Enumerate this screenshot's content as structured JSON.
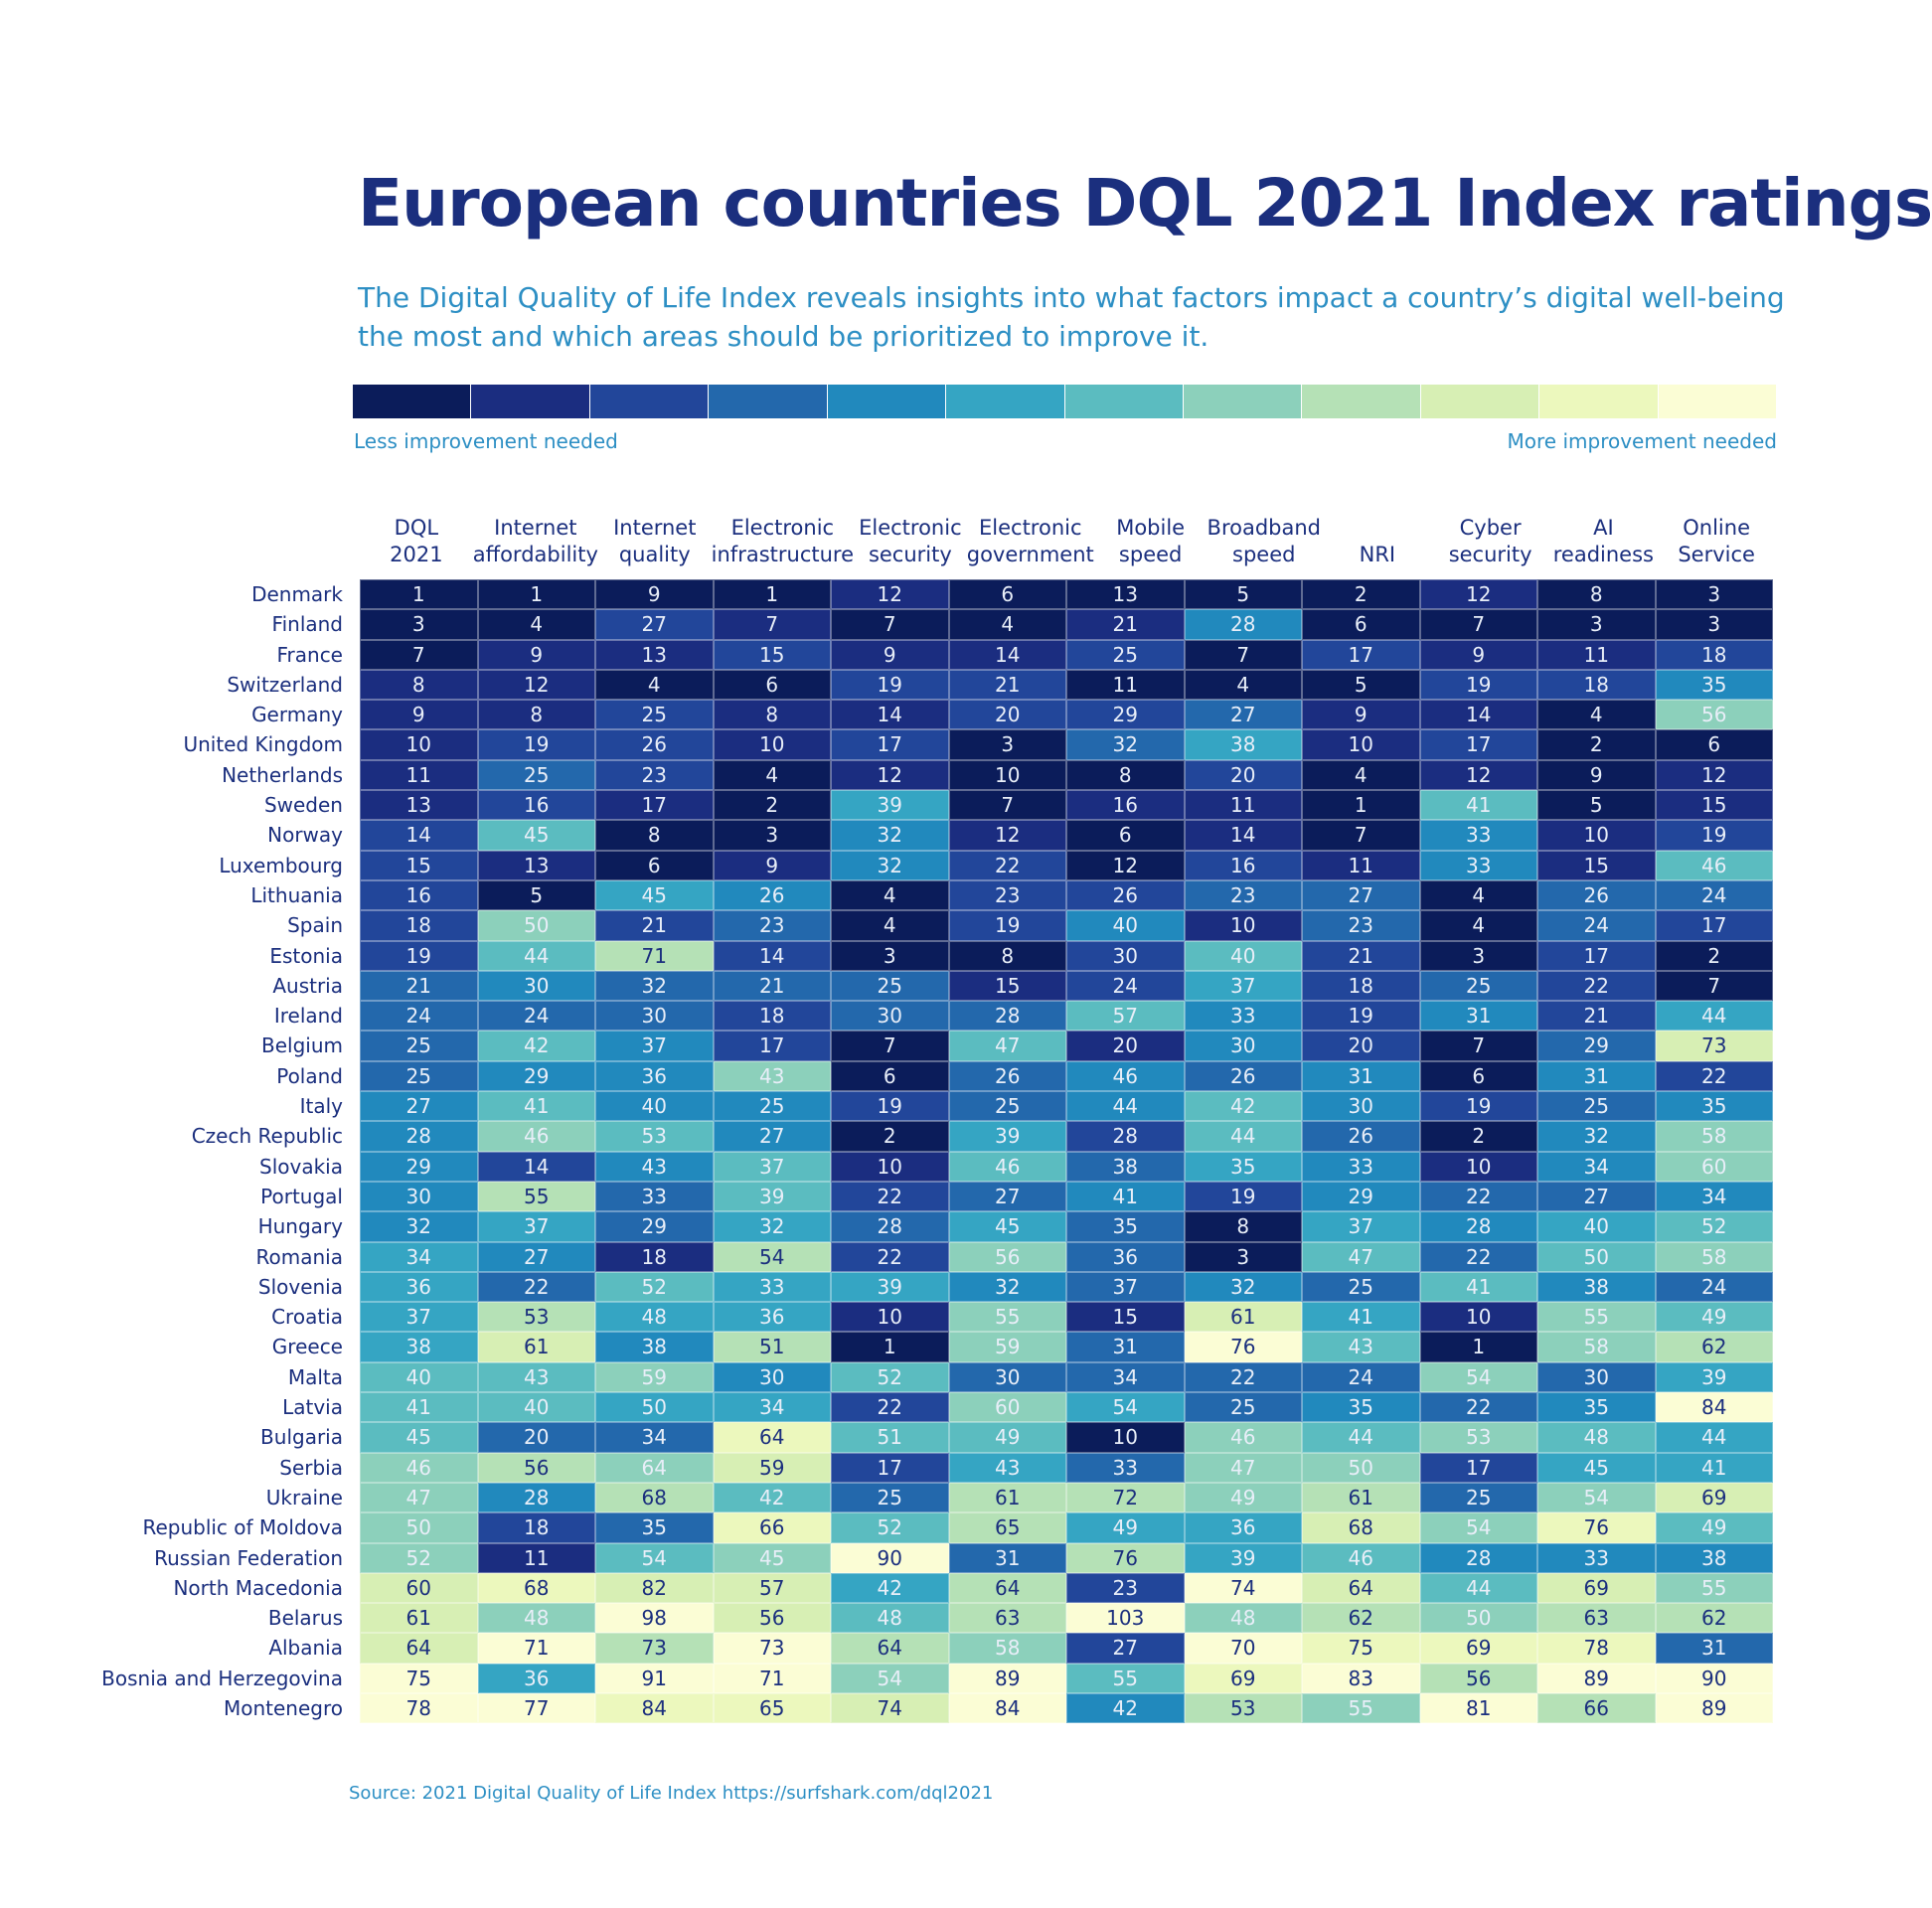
{
  "title": "European countries DQL 2021 Index ratings",
  "subtitle": "The Digital Quality of Life Index reveals insights into what factors impact a country’s digital well-being the most and which areas should be prioritized to improve it.",
  "legend": {
    "low_label": "Less improvement needed",
    "high_label": "More improvement needed",
    "colors": [
      "#0b1c5a",
      "#1b2d80",
      "#22469a",
      "#2368ac",
      "#2189bd",
      "#35a5c3",
      "#5bbcc0",
      "#8cd0bb",
      "#b5e1b6",
      "#d7efb4",
      "#ecf8bd",
      "#fbfdd5"
    ]
  },
  "source": "Source: 2021 Digital Quality of Life Index https://surfshark.com/dql2021",
  "chart_data": {
    "type": "heatmap",
    "columns": [
      "DQL\n2021",
      "Internet\naffordability",
      "Internet\nquality",
      "Electronic\ninfrastructure",
      "Electronic\nsecurity",
      "Electronic\ngovernment",
      "Mobile\nspeed",
      "Broadband\nspeed",
      "NRI",
      "Cyber\nsecurity",
      "AI\nreadiness",
      "Online\nService"
    ],
    "rows": [
      {
        "country": "Denmark",
        "values": [
          1,
          1,
          9,
          1,
          12,
          6,
          13,
          5,
          2,
          12,
          8,
          3
        ]
      },
      {
        "country": "Finland",
        "values": [
          3,
          4,
          27,
          7,
          7,
          4,
          21,
          28,
          6,
          7,
          3,
          3
        ]
      },
      {
        "country": "France",
        "values": [
          7,
          9,
          13,
          15,
          9,
          14,
          25,
          7,
          17,
          9,
          11,
          18
        ]
      },
      {
        "country": "Switzerland",
        "values": [
          8,
          12,
          4,
          6,
          19,
          21,
          11,
          4,
          5,
          19,
          18,
          35
        ]
      },
      {
        "country": "Germany",
        "values": [
          9,
          8,
          25,
          8,
          14,
          20,
          29,
          27,
          9,
          14,
          4,
          56
        ]
      },
      {
        "country": "United Kingdom",
        "values": [
          10,
          19,
          26,
          10,
          17,
          3,
          32,
          38,
          10,
          17,
          2,
          6
        ]
      },
      {
        "country": "Netherlands",
        "values": [
          11,
          25,
          23,
          4,
          12,
          10,
          8,
          20,
          4,
          12,
          9,
          12
        ]
      },
      {
        "country": "Sweden",
        "values": [
          13,
          16,
          17,
          2,
          39,
          7,
          16,
          11,
          1,
          41,
          5,
          15
        ]
      },
      {
        "country": "Norway",
        "values": [
          14,
          45,
          8,
          3,
          32,
          12,
          6,
          14,
          7,
          33,
          10,
          19
        ]
      },
      {
        "country": "Luxembourg",
        "values": [
          15,
          13,
          6,
          9,
          32,
          22,
          12,
          16,
          11,
          33,
          15,
          46
        ]
      },
      {
        "country": "Lithuania",
        "values": [
          16,
          5,
          45,
          26,
          4,
          23,
          26,
          23,
          27,
          4,
          26,
          24
        ]
      },
      {
        "country": "Spain",
        "values": [
          18,
          50,
          21,
          23,
          4,
          19,
          40,
          10,
          23,
          4,
          24,
          17
        ]
      },
      {
        "country": "Estonia",
        "values": [
          19,
          44,
          71,
          14,
          3,
          8,
          30,
          40,
          21,
          3,
          17,
          2
        ]
      },
      {
        "country": "Austria",
        "values": [
          21,
          30,
          32,
          21,
          25,
          15,
          24,
          37,
          18,
          25,
          22,
          7
        ]
      },
      {
        "country": "Ireland",
        "values": [
          24,
          24,
          30,
          18,
          30,
          28,
          57,
          33,
          19,
          31,
          21,
          44
        ]
      },
      {
        "country": "Belgium",
        "values": [
          25,
          42,
          37,
          17,
          7,
          47,
          20,
          30,
          20,
          7,
          29,
          73
        ]
      },
      {
        "country": "Poland",
        "values": [
          25,
          29,
          36,
          43,
          6,
          26,
          46,
          26,
          31,
          6,
          31,
          22
        ]
      },
      {
        "country": "Italy",
        "values": [
          27,
          41,
          40,
          25,
          19,
          25,
          44,
          42,
          30,
          19,
          25,
          35
        ]
      },
      {
        "country": "Czech Republic",
        "values": [
          28,
          46,
          53,
          27,
          2,
          39,
          28,
          44,
          26,
          2,
          32,
          58
        ]
      },
      {
        "country": "Slovakia",
        "values": [
          29,
          14,
          43,
          37,
          10,
          46,
          38,
          35,
          33,
          10,
          34,
          60
        ]
      },
      {
        "country": "Portugal",
        "values": [
          30,
          55,
          33,
          39,
          22,
          27,
          41,
          19,
          29,
          22,
          27,
          34
        ]
      },
      {
        "country": "Hungary",
        "values": [
          32,
          37,
          29,
          32,
          28,
          45,
          35,
          8,
          37,
          28,
          40,
          52
        ]
      },
      {
        "country": "Romania",
        "values": [
          34,
          27,
          18,
          54,
          22,
          56,
          36,
          3,
          47,
          22,
          50,
          58
        ]
      },
      {
        "country": "Slovenia",
        "values": [
          36,
          22,
          52,
          33,
          39,
          32,
          37,
          32,
          25,
          41,
          38,
          24
        ]
      },
      {
        "country": "Croatia",
        "values": [
          37,
          53,
          48,
          36,
          10,
          55,
          15,
          61,
          41,
          10,
          55,
          49
        ]
      },
      {
        "country": "Greece",
        "values": [
          38,
          61,
          38,
          51,
          1,
          59,
          31,
          76,
          43,
          1,
          58,
          62
        ]
      },
      {
        "country": "Malta",
        "values": [
          40,
          43,
          59,
          30,
          52,
          30,
          34,
          22,
          24,
          54,
          30,
          39
        ]
      },
      {
        "country": "Latvia",
        "values": [
          41,
          40,
          50,
          34,
          22,
          60,
          54,
          25,
          35,
          22,
          35,
          84
        ]
      },
      {
        "country": "Bulgaria",
        "values": [
          45,
          20,
          34,
          64,
          51,
          49,
          10,
          46,
          44,
          53,
          48,
          44
        ]
      },
      {
        "country": "Serbia",
        "values": [
          46,
          56,
          64,
          59,
          17,
          43,
          33,
          47,
          50,
          17,
          45,
          41
        ]
      },
      {
        "country": "Ukraine",
        "values": [
          47,
          28,
          68,
          42,
          25,
          61,
          72,
          49,
          61,
          25,
          54,
          69
        ]
      },
      {
        "country": "Republic of Moldova",
        "values": [
          50,
          18,
          35,
          66,
          52,
          65,
          49,
          36,
          68,
          54,
          76,
          49
        ]
      },
      {
        "country": "Russian Federation",
        "values": [
          52,
          11,
          54,
          45,
          90,
          31,
          76,
          39,
          46,
          28,
          33,
          38
        ]
      },
      {
        "country": "North Macedonia",
        "values": [
          60,
          68,
          82,
          57,
          42,
          64,
          23,
          74,
          64,
          44,
          69,
          55
        ]
      },
      {
        "country": "Belarus",
        "values": [
          61,
          48,
          98,
          56,
          48,
          63,
          103,
          48,
          62,
          50,
          63,
          62
        ]
      },
      {
        "country": "Albania",
        "values": [
          64,
          71,
          73,
          73,
          64,
          58,
          27,
          70,
          75,
          69,
          78,
          31
        ]
      },
      {
        "country": "Bosnia and Herzegovina",
        "values": [
          75,
          36,
          91,
          71,
          54,
          89,
          55,
          69,
          83,
          56,
          89,
          90
        ]
      },
      {
        "country": "Montenegro",
        "values": [
          78,
          77,
          84,
          65,
          74,
          84,
          42,
          53,
          55,
          81,
          66,
          89
        ]
      }
    ]
  }
}
